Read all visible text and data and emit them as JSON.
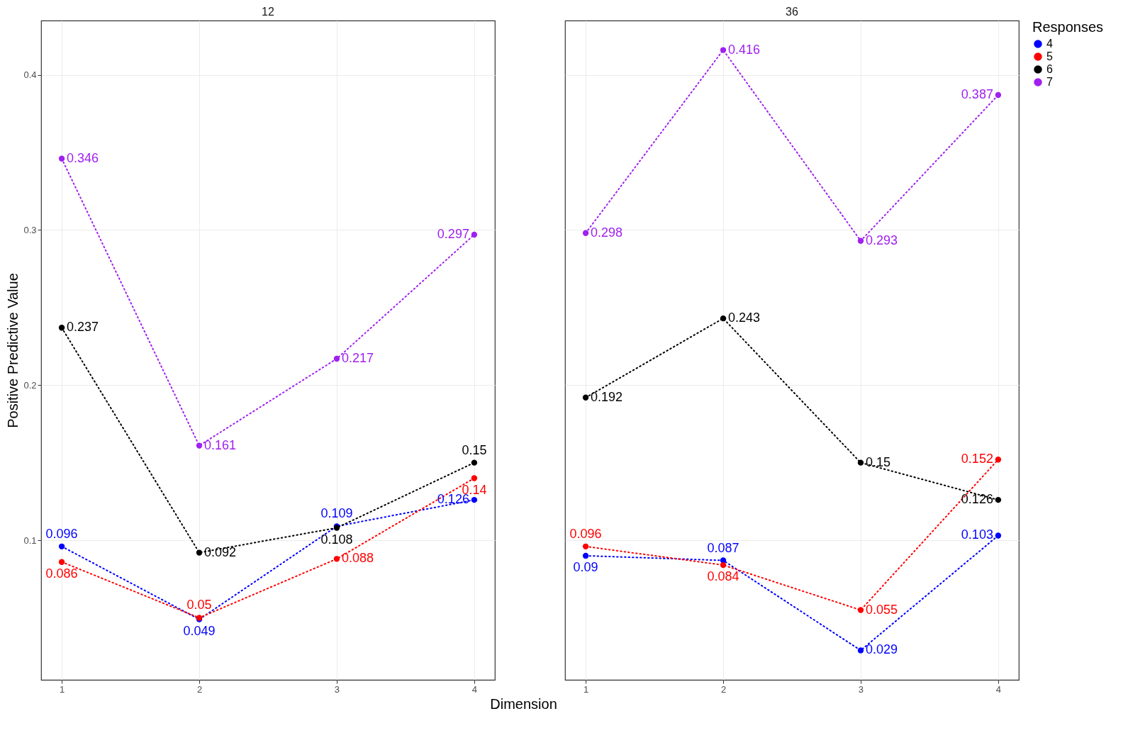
{
  "chart_data": [
    {
      "type": "line",
      "title": "12",
      "xlabel": "Dimension",
      "ylabel": "Positive Predictive Value",
      "x": [
        1,
        2,
        3,
        4
      ],
      "xlim": [
        0.85,
        4.15
      ],
      "xticks": [
        1,
        2,
        3,
        4
      ],
      "ylim": [
        0.01,
        0.435
      ],
      "yticks": [
        0.1,
        0.2,
        0.3,
        0.4
      ],
      "grid": true,
      "marker": "circle",
      "line_style": "dotted",
      "data_labels": true,
      "legend": "right",
      "legend_title": "Responses",
      "series": [
        {
          "name": "4",
          "color": "#0000ff",
          "values": [
            0.096,
            0.049,
            0.109,
            0.126
          ]
        },
        {
          "name": "5",
          "color": "#ff0000",
          "values": [
            0.086,
            0.05,
            0.088,
            0.14
          ]
        },
        {
          "name": "6",
          "color": "#000000",
          "values": [
            0.237,
            0.092,
            0.108,
            0.15
          ]
        },
        {
          "name": "7",
          "color": "#a020f0",
          "values": [
            0.346,
            0.161,
            0.217,
            0.297
          ]
        }
      ]
    },
    {
      "type": "line",
      "title": "36",
      "x": [
        1,
        2,
        3,
        4
      ],
      "xlim": [
        0.85,
        4.15
      ],
      "xticks": [
        1,
        2,
        3,
        4
      ],
      "ylim": [
        0.01,
        0.435
      ],
      "yticks": [
        0.1,
        0.2,
        0.3,
        0.4
      ],
      "tick_labels": "x",
      "grid": true,
      "marker": "circle",
      "line_style": "dotted",
      "data_labels": true,
      "series": [
        {
          "name": "4",
          "color": "#0000ff",
          "values": [
            0.09,
            0.087,
            0.029,
            0.103
          ]
        },
        {
          "name": "5",
          "color": "#ff0000",
          "values": [
            0.096,
            0.084,
            0.055,
            0.152
          ]
        },
        {
          "name": "6",
          "color": "#000000",
          "values": [
            0.192,
            0.243,
            0.15,
            0.126
          ]
        },
        {
          "name": "7",
          "color": "#a020f0",
          "values": [
            0.298,
            0.416,
            0.293,
            0.387
          ]
        }
      ]
    }
  ]
}
